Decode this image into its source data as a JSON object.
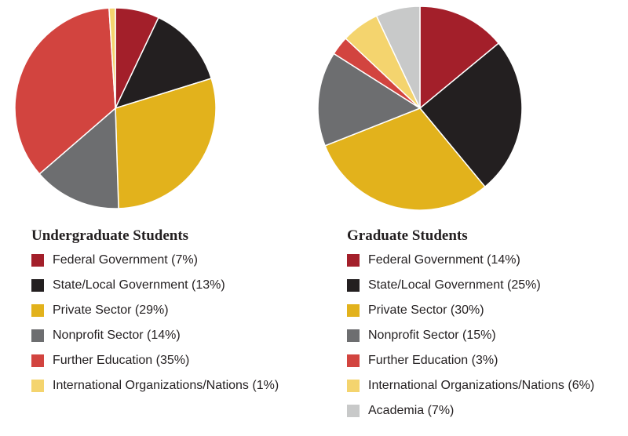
{
  "chart_data": [
    {
      "type": "pie",
      "title": "Undergraduate Students",
      "categories": [
        "Federal Government (7%)",
        "State/Local Government (13%)",
        "Private Sector (29%)",
        "Nonprofit Sector (14%)",
        "Further Education (35%)",
        "International Organizations/Nations (1%)"
      ],
      "values": [
        7,
        13,
        29,
        14,
        35,
        1
      ],
      "colors": [
        "#a31f2a",
        "#231f20",
        "#e2b21c",
        "#6d6e70",
        "#d2443f",
        "#f4d46e"
      ]
    },
    {
      "type": "pie",
      "title": "Graduate Students",
      "categories": [
        "Federal Government (14%)",
        "State/Local Government (25%)",
        "Private Sector (30%)",
        "Nonprofit Sector (15%)",
        "Further Education (3%)",
        "International Organizations/Nations (6%)",
        "Academia (7%)"
      ],
      "values": [
        14,
        25,
        30,
        15,
        3,
        6,
        7
      ],
      "colors": [
        "#a31f2a",
        "#231f20",
        "#e2b21c",
        "#6d6e70",
        "#d2443f",
        "#f4d46e",
        "#c8c9c9"
      ]
    }
  ]
}
